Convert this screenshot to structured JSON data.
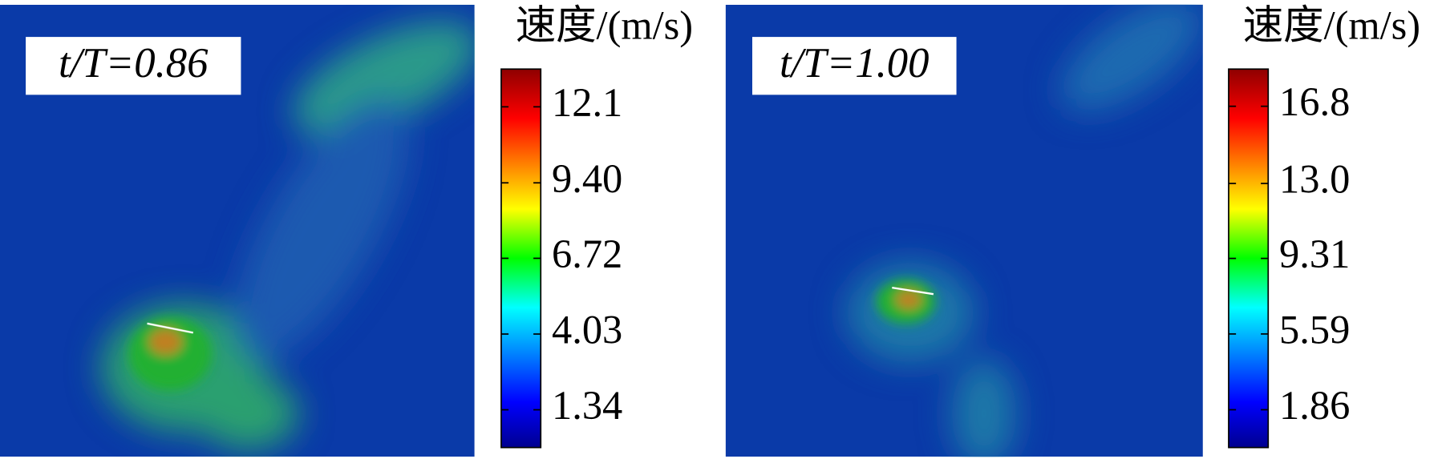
{
  "panels": [
    {
      "label": "t/T=0.86",
      "colorbar": {
        "title": "速度/(m/s)",
        "range": [
          0,
          13.44
        ],
        "ticks": [
          1.34,
          4.03,
          6.72,
          {
            "value": 9.4,
            "label": "9.40"
          },
          12.1
        ]
      }
    },
    {
      "label": "t/T=1.00",
      "colorbar": {
        "title": "速度/(m/s)",
        "range": [
          0,
          18.63
        ],
        "ticks": [
          1.86,
          5.59,
          9.31,
          {
            "value": 13.0,
            "label": "13.0"
          },
          16.8
        ]
      }
    }
  ]
}
